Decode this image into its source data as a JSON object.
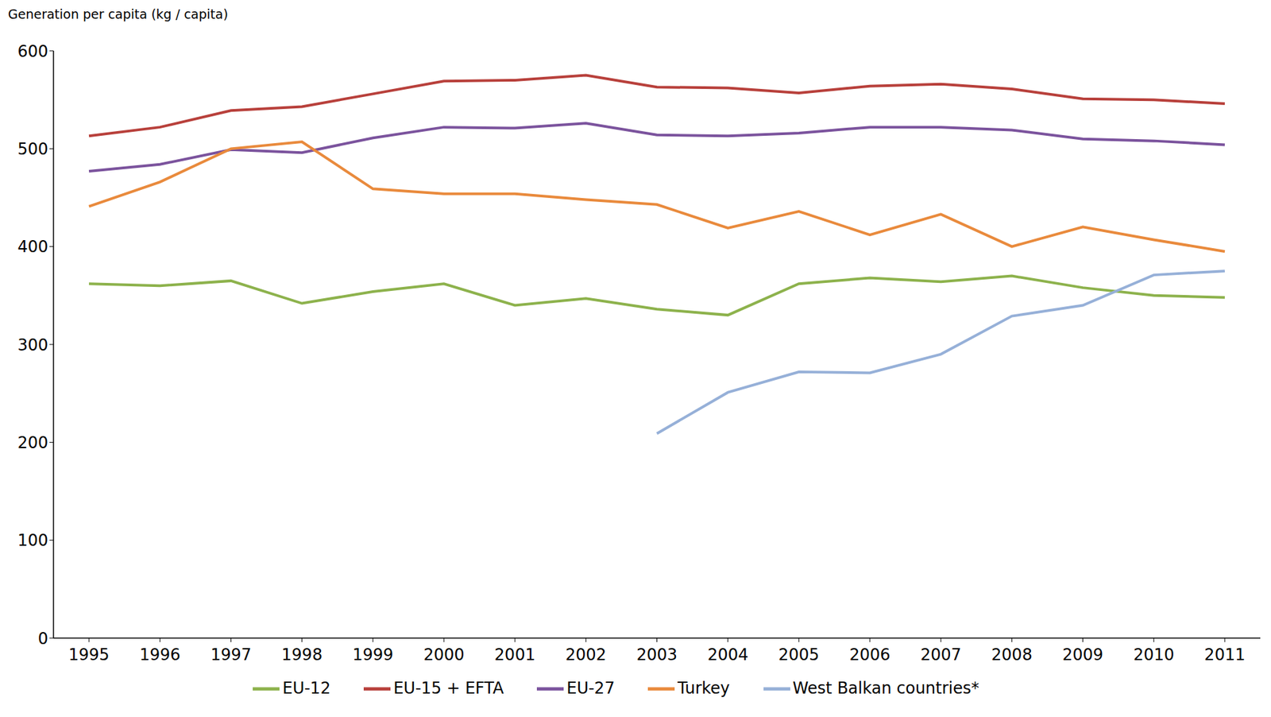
{
  "chart_data": {
    "type": "line",
    "ylabel": "Generation per capita (kg / capita)",
    "categories": [
      "1995",
      "1996",
      "1997",
      "1998",
      "1999",
      "2000",
      "2001",
      "2002",
      "2003",
      "2004",
      "2005",
      "2006",
      "2007",
      "2008",
      "2009",
      "2010",
      "2011"
    ],
    "series": [
      {
        "name": "EU-15 + EFTA",
        "color": "#b8403b",
        "values": [
          513,
          522,
          539,
          543,
          556,
          569,
          570,
          575,
          563,
          562,
          557,
          564,
          566,
          561,
          551,
          550,
          546
        ]
      },
      {
        "name": "EU-27",
        "color": "#7b539d",
        "values": [
          477,
          484,
          499,
          496,
          511,
          522,
          521,
          526,
          514,
          513,
          516,
          522,
          522,
          519,
          510,
          508,
          504
        ]
      },
      {
        "name": "Turkey",
        "color": "#e98a3c",
        "values": [
          441,
          466,
          500,
          507,
          459,
          454,
          454,
          448,
          443,
          419,
          436,
          412,
          433,
          400,
          420,
          407,
          395
        ]
      },
      {
        "name": "EU-12",
        "color": "#8db24c",
        "values": [
          362,
          360,
          365,
          342,
          354,
          362,
          340,
          347,
          336,
          330,
          362,
          368,
          364,
          370,
          358,
          350,
          348
        ]
      },
      {
        "name": "West Balkan countries*",
        "color": "#96b0d8",
        "values": [
          null,
          null,
          null,
          null,
          null,
          null,
          null,
          null,
          209,
          251,
          272,
          271,
          290,
          329,
          340,
          371,
          375
        ]
      }
    ],
    "ylim": [
      0,
      600
    ],
    "yticks": [
      0,
      100,
      200,
      300,
      400,
      500,
      600
    ],
    "grid": false,
    "legend": "bottom"
  }
}
